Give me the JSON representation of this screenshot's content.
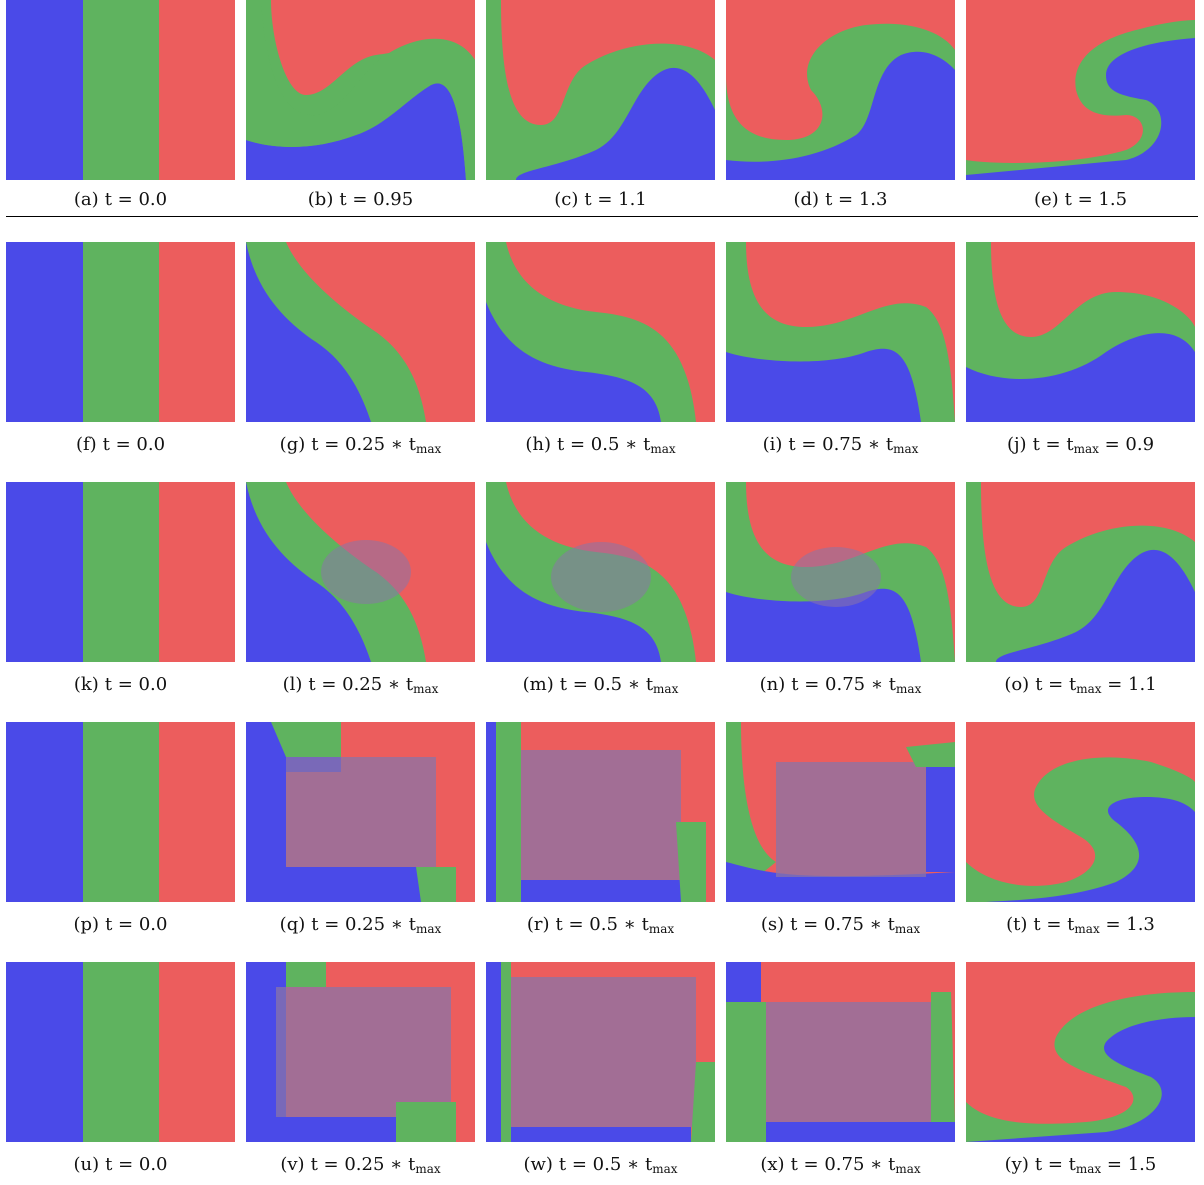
{
  "colors": {
    "blue": "#4a4ae8",
    "green": "#5fb35f",
    "red": "#ec5d5d"
  },
  "rows": [
    {
      "panels": [
        {
          "tag": "(a)",
          "eq": "t = 0.0"
        },
        {
          "tag": "(b)",
          "eq": "t = 0.95"
        },
        {
          "tag": "(c)",
          "eq": "t = 1.1"
        },
        {
          "tag": "(d)",
          "eq": "t = 1.3"
        },
        {
          "tag": "(e)",
          "eq": "t = 1.5"
        }
      ]
    },
    {
      "panels": [
        {
          "tag": "(f)",
          "eq": "t = 0.0"
        },
        {
          "tag": "(g)",
          "eq": "t = 0.25 ∗ t",
          "sub": "max"
        },
        {
          "tag": "(h)",
          "eq": "t = 0.5 ∗ t",
          "sub": "max"
        },
        {
          "tag": "(i)",
          "eq": "t = 0.75 ∗ t",
          "sub": "max"
        },
        {
          "tag": "(j)",
          "eq": "t = t",
          "sub": "max",
          "tail": " = 0.9"
        }
      ]
    },
    {
      "panels": [
        {
          "tag": "(k)",
          "eq": "t = 0.0"
        },
        {
          "tag": "(l)",
          "eq": "t = 0.25 ∗ t",
          "sub": "max"
        },
        {
          "tag": "(m)",
          "eq": "t = 0.5 ∗ t",
          "sub": "max"
        },
        {
          "tag": "(n)",
          "eq": "t = 0.75 ∗ t",
          "sub": "max"
        },
        {
          "tag": "(o)",
          "eq": "t = t",
          "sub": "max",
          "tail": " = 1.1"
        }
      ]
    },
    {
      "panels": [
        {
          "tag": "(p)",
          "eq": "t = 0.0"
        },
        {
          "tag": "(q)",
          "eq": "t = 0.25 ∗ t",
          "sub": "max"
        },
        {
          "tag": "(r)",
          "eq": "t = 0.5 ∗ t",
          "sub": "max"
        },
        {
          "tag": "(s)",
          "eq": "t = 0.75 ∗ t",
          "sub": "max"
        },
        {
          "tag": "(t)",
          "eq": "t = t",
          "sub": "max",
          "tail": " = 1.3"
        }
      ]
    },
    {
      "panels": [
        {
          "tag": "(u)",
          "eq": "t = 0.0"
        },
        {
          "tag": "(v)",
          "eq": "t = 0.25 ∗ t",
          "sub": "max"
        },
        {
          "tag": "(w)",
          "eq": "t = 0.5 ∗ t",
          "sub": "max"
        },
        {
          "tag": "(x)",
          "eq": "t = 0.75 ∗ t",
          "sub": "max"
        },
        {
          "tag": "(y)",
          "eq": "t = t",
          "sub": "max",
          "tail": " = 1.5"
        }
      ]
    }
  ]
}
